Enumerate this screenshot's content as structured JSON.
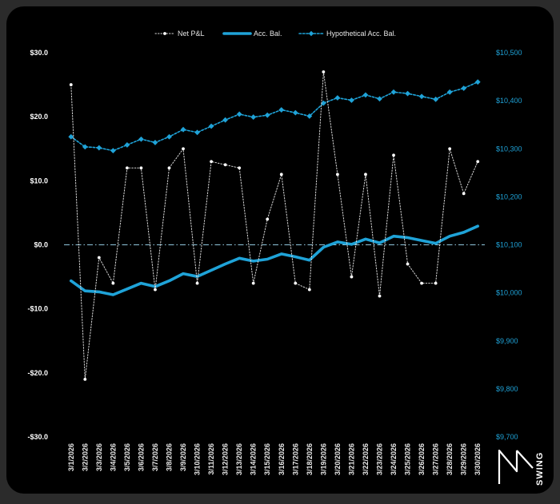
{
  "chart_data": {
    "type": "line",
    "title": "",
    "xlabel": "",
    "ylabel": "",
    "x": [
      "3/1/2026",
      "3/2/2026",
      "3/3/2026",
      "3/4/2026",
      "3/5/2026",
      "3/6/2026",
      "3/7/2026",
      "3/8/2026",
      "3/9/2026",
      "3/10/2026",
      "3/11/2026",
      "3/12/2026",
      "3/13/2026",
      "3/14/2026",
      "3/15/2026",
      "3/16/2026",
      "3/17/2026",
      "3/18/2026",
      "3/19/2026",
      "3/20/2026",
      "3/21/2026",
      "3/22/2026",
      "3/23/2026",
      "3/24/2026",
      "3/25/2026",
      "3/26/2026",
      "3/27/2026",
      "3/28/2026",
      "3/29/2026",
      "3/30/2026"
    ],
    "y_left": {
      "ylim": [
        -30,
        30
      ],
      "ticks": [
        30,
        20,
        10,
        0,
        -10,
        -20,
        -30
      ],
      "tick_labels": [
        "$30.0",
        "$20.0",
        "$10.0",
        "$0.0",
        "-$10.0",
        "-$20.0",
        "-$30.0"
      ]
    },
    "y_right": {
      "ylim": [
        9700,
        10500
      ],
      "ticks": [
        10500,
        10400,
        10300,
        10200,
        10100,
        10000,
        9900,
        9800,
        9700
      ],
      "tick_labels": [
        "$10,500",
        "$10,400",
        "$10,300",
        "$10,200",
        "$10,100",
        "$10,000",
        "$9,900",
        "$9,800",
        "$9,700"
      ]
    },
    "series": [
      {
        "name": "Net P&L",
        "axis": "left",
        "color": "#d9d9d9",
        "values": [
          25,
          -21,
          -2,
          -6,
          12,
          12,
          -7,
          12,
          15,
          -6,
          13,
          12.5,
          12,
          -6,
          4,
          11,
          -6,
          -7,
          27,
          11,
          -5,
          11,
          -8,
          14,
          -3,
          -6,
          -6,
          15,
          8,
          13
        ]
      },
      {
        "name": "Acc. Bal.",
        "axis": "right",
        "color": "#1fa3d8",
        "values": [
          10025,
          10004,
          10002,
          9996,
          10008,
          10020,
          10013,
          10025,
          10040,
          10034,
          10047,
          10060,
          10072,
          10066,
          10070,
          10081,
          10075,
          10068,
          10095,
          10106,
          10101,
          10112,
          10104,
          10118,
          10115,
          10109,
          10103,
          10118,
          10126,
          10139
        ]
      },
      {
        "name": "Hypothetical Acc. Bal.",
        "axis": "right",
        "color": "#1fa3d8",
        "values": [
          10325,
          10304,
          10302,
          10296,
          10308,
          10320,
          10313,
          10325,
          10340,
          10334,
          10347,
          10360,
          10372,
          10366,
          10370,
          10381,
          10375,
          10368,
          10395,
          10406,
          10401,
          10412,
          10404,
          10418,
          10415,
          10409,
          10403,
          10418,
          10426,
          10439
        ]
      }
    ],
    "zero_line": true,
    "grid": false,
    "legend_position": "top-center"
  },
  "logo": {
    "text": "SWING"
  }
}
